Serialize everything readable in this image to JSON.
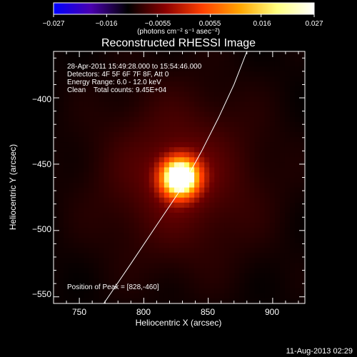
{
  "chart_data": {
    "type": "heatmap",
    "title": "Reconstructed RHESSI Image",
    "xlabel": "Heliocentric X (arcsec)",
    "ylabel": "Heliocentric Y (arcsec)",
    "xlim": [
      730,
      925
    ],
    "ylim": [
      -555,
      -365
    ],
    "x_ticks": [
      750,
      800,
      850,
      900
    ],
    "y_ticks": [
      -400,
      -450,
      -500,
      -550
    ],
    "x_tick_labels": [
      "750",
      "800",
      "850",
      "900"
    ],
    "y_tick_labels": [
      "−400",
      "−450",
      "−500",
      "−550"
    ],
    "colorbar": {
      "range": [
        -0.027,
        0.027
      ],
      "tick_values": [
        -0.027,
        -0.016,
        -0.0055,
        0.0055,
        0.016,
        0.027
      ],
      "tick_labels": [
        "−0.027",
        "−0.016",
        "−0.0055",
        "0.0055",
        "0.016",
        "0.027"
      ],
      "label": "(photons cm⁻² s⁻¹ asec⁻²)",
      "colormap": [
        "#0000ff",
        "#4a00b0",
        "#000000",
        "#8b0000",
        "#ff4000",
        "#ffa500",
        "#ffff80",
        "#ffffff"
      ]
    },
    "source": {
      "center": [
        828,
        -460
      ],
      "peak": 0.027,
      "sigma_arcsec": 11
    },
    "limb": [
      [
        769,
        -555
      ],
      [
        790,
        -525
      ],
      [
        810,
        -496
      ],
      [
        828,
        -470
      ],
      [
        845,
        -440
      ],
      [
        858,
        -415
      ],
      [
        870,
        -390
      ],
      [
        880,
        -365
      ]
    ],
    "annotations": {
      "time": "28-Apr-2011 15:49:28.000 to 15:54:46.000",
      "detectors": "Detectors: 4F 5F 6F 7F 8F, Att 0",
      "energy": "Energy Range: 6.0 - 12.0 keV",
      "clean": "Clean    Total counts: 9.45E+04",
      "peak": "Position of Peak = [828,-460]"
    }
  },
  "footer": {
    "timestamp": "11-Aug-2013 02:29"
  }
}
